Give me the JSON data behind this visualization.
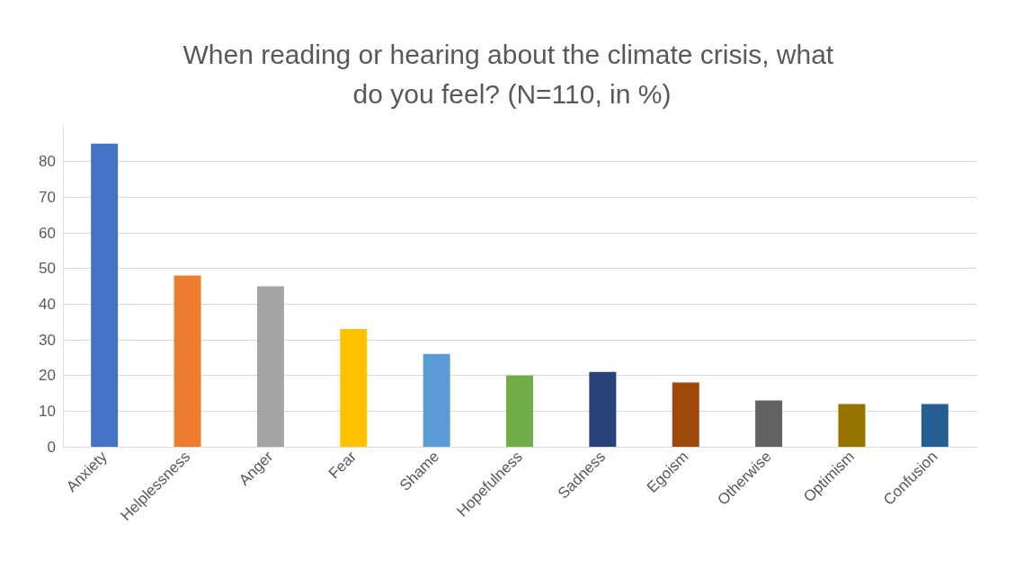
{
  "chart_data": {
    "type": "bar",
    "title": "When reading or hearing about the climate crisis, what do you feel? (N=110, in %)",
    "categories": [
      "Anxiety",
      "Helplessness",
      "Anger",
      "Fear",
      "Shame",
      "Hopefulness",
      "Sadness",
      "Egoism",
      "Otherwise",
      "Optimism",
      "Confusion"
    ],
    "values": [
      85,
      48,
      45,
      33,
      26,
      20,
      21,
      18,
      13,
      12,
      12
    ],
    "colors": [
      "#4472c4",
      "#ed7d31",
      "#a5a5a5",
      "#ffc000",
      "#5b9bd5",
      "#70ad47",
      "#264478",
      "#9e480e",
      "#636363",
      "#997300",
      "#255e91"
    ],
    "ylim": [
      0,
      90
    ],
    "yticks": [
      0,
      10,
      20,
      30,
      40,
      50,
      60,
      70,
      80
    ],
    "grid": "y"
  }
}
